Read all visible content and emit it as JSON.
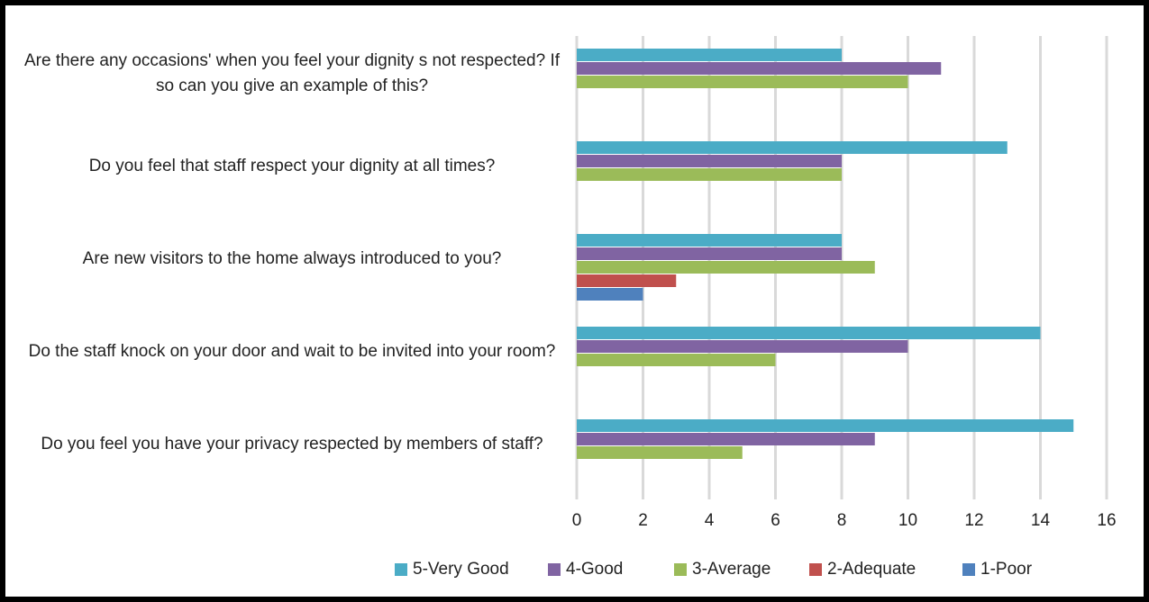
{
  "chart_data": {
    "type": "bar",
    "orientation": "horizontal",
    "categories": [
      "Are there any occasions' when you feel your dignity s not respected? If so can you give an example of this?",
      "Do you feel that staff respect your dignity at all times?",
      "Are new visitors to the home always introduced to you?",
      "Do the staff knock on your door and wait to be invited into your room?",
      "Do you feel you have your privacy respected by members of staff?"
    ],
    "series": [
      {
        "name": "5-Very Good",
        "color": "#4bacc6",
        "values": [
          8,
          13,
          8,
          14,
          15
        ]
      },
      {
        "name": "4-Good",
        "color": "#8064a2",
        "values": [
          11,
          8,
          8,
          10,
          9
        ]
      },
      {
        "name": "3-Average",
        "color": "#9bbb59",
        "values": [
          10,
          8,
          9,
          6,
          5
        ]
      },
      {
        "name": "2-Adequate",
        "color": "#c0504d",
        "values": [
          0,
          0,
          3,
          0,
          0
        ]
      },
      {
        "name": "1-Poor",
        "color": "#4f81bd",
        "values": [
          0,
          0,
          2,
          0,
          0
        ]
      }
    ],
    "xlim": [
      0,
      16
    ],
    "xticks": [
      0,
      2,
      4,
      6,
      8,
      10,
      12,
      14,
      16
    ],
    "grid": true,
    "legend": "bottom"
  }
}
